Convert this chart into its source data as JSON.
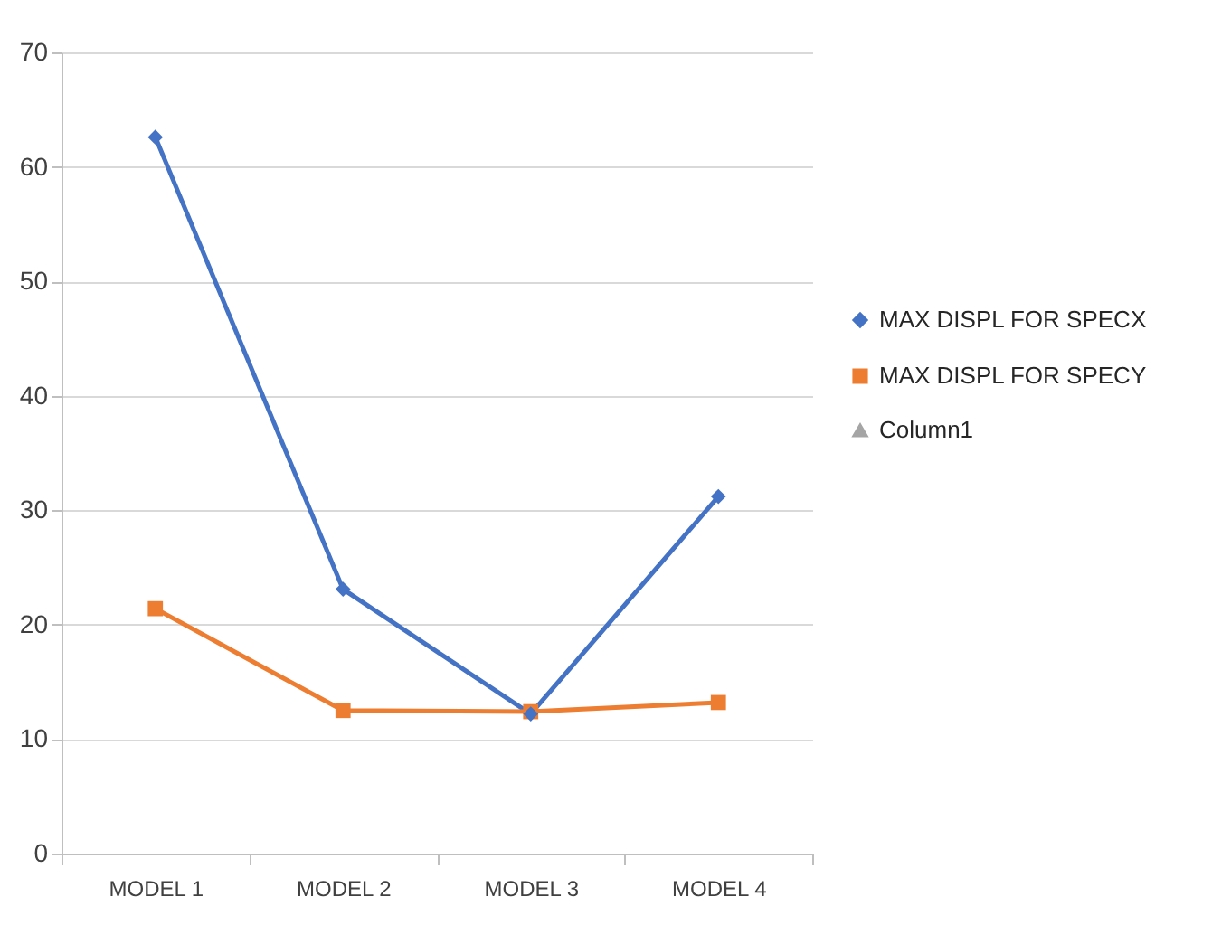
{
  "chart_data": {
    "type": "line",
    "categories": [
      "MODEL 1",
      "MODEL 2",
      "MODEL 3",
      "MODEL 4"
    ],
    "series": [
      {
        "name": "MAX DISPL FOR SPECX",
        "color": "#4472c4",
        "marker": "diamond",
        "values": [
          62.6,
          23.1,
          12.2,
          31.2
        ]
      },
      {
        "name": "MAX DISPL FOR SPECY",
        "color": "#ed7d31",
        "marker": "square",
        "values": [
          21.4,
          12.5,
          12.4,
          13.2
        ]
      },
      {
        "name": "Column1",
        "color": "#a5a5a5",
        "marker": "triangle",
        "values": [
          null,
          null,
          null,
          null
        ]
      }
    ],
    "ylim": [
      0,
      70
    ],
    "yticks": [
      0,
      10,
      20,
      30,
      40,
      50,
      60,
      70
    ],
    "grid": "y",
    "legend": "right",
    "line_style": "solid"
  }
}
